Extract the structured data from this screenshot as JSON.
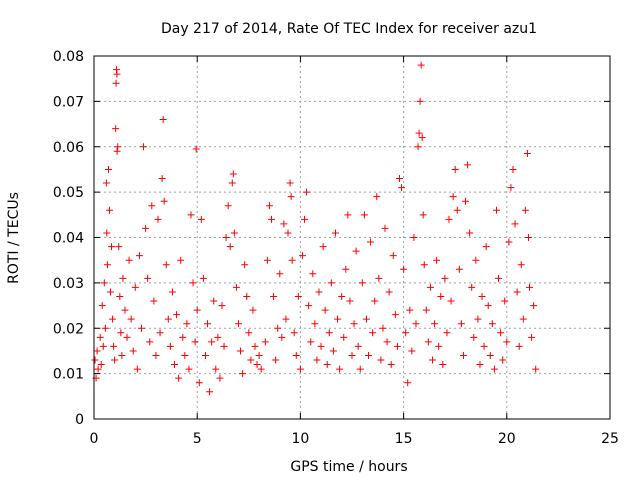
{
  "chart_data": {
    "type": "scatter",
    "title": "Day 217 of 2014, Rate Of TEC Index for receiver azu1",
    "xlabel": "GPS time / hours",
    "ylabel": "ROTI / TECUs",
    "xlim": [
      0,
      25
    ],
    "ylim": [
      0,
      0.08
    ],
    "x_ticks": [
      0,
      5,
      10,
      15,
      20,
      25
    ],
    "x_tick_labels": [
      "0",
      "5",
      "10",
      "15",
      "20",
      "25"
    ],
    "y_ticks": [
      0,
      0.01,
      0.02,
      0.03,
      0.04,
      0.05,
      0.06,
      0.07,
      0.08
    ],
    "y_tick_labels": [
      "0",
      "0.01",
      "0.02",
      "0.03",
      "0.04",
      "0.05",
      "0.06",
      "0.07",
      "0.08"
    ],
    "grid": true,
    "marker": "plus",
    "color": "#ff0000",
    "series": [
      {
        "points": [
          [
            0.05,
            0.013
          ],
          [
            0.1,
            0.009
          ],
          [
            0.15,
            0.015
          ],
          [
            0.2,
            0.011
          ],
          [
            0.3,
            0.018
          ],
          [
            0.35,
            0.012
          ],
          [
            0.4,
            0.025
          ],
          [
            0.45,
            0.016
          ],
          [
            0.5,
            0.03
          ],
          [
            0.55,
            0.02
          ],
          [
            0.6,
            0.052
          ],
          [
            0.62,
            0.041
          ],
          [
            0.65,
            0.034
          ],
          [
            0.7,
            0.055
          ],
          [
            0.75,
            0.046
          ],
          [
            0.8,
            0.028
          ],
          [
            0.85,
            0.038
          ],
          [
            0.9,
            0.022
          ],
          [
            0.95,
            0.016
          ],
          [
            1.0,
            0.013
          ],
          [
            1.05,
            0.064
          ],
          [
            1.07,
            0.074
          ],
          [
            1.09,
            0.077
          ],
          [
            1.11,
            0.076
          ],
          [
            1.12,
            0.059
          ],
          [
            1.15,
            0.06
          ],
          [
            1.2,
            0.038
          ],
          [
            1.25,
            0.027
          ],
          [
            1.3,
            0.019
          ],
          [
            1.35,
            0.014
          ],
          [
            1.4,
            0.031
          ],
          [
            1.5,
            0.024
          ],
          [
            1.6,
            0.018
          ],
          [
            1.7,
            0.035
          ],
          [
            1.8,
            0.022
          ],
          [
            1.9,
            0.015
          ],
          [
            2.0,
            0.029
          ],
          [
            2.1,
            0.011
          ],
          [
            2.2,
            0.036
          ],
          [
            2.3,
            0.02
          ],
          [
            2.4,
            0.06
          ],
          [
            2.5,
            0.042
          ],
          [
            2.6,
            0.031
          ],
          [
            2.7,
            0.017
          ],
          [
            2.8,
            0.047
          ],
          [
            2.9,
            0.026
          ],
          [
            3.0,
            0.014
          ],
          [
            3.1,
            0.044
          ],
          [
            3.2,
            0.019
          ],
          [
            3.3,
            0.053
          ],
          [
            3.35,
            0.066
          ],
          [
            3.4,
            0.048
          ],
          [
            3.5,
            0.034
          ],
          [
            3.6,
            0.022
          ],
          [
            3.7,
            0.016
          ],
          [
            3.8,
            0.028
          ],
          [
            3.9,
            0.012
          ],
          [
            4.0,
            0.023
          ],
          [
            4.1,
            0.009
          ],
          [
            4.2,
            0.035
          ],
          [
            4.3,
            0.018
          ],
          [
            4.4,
            0.014
          ],
          [
            4.5,
            0.021
          ],
          [
            4.6,
            0.011
          ],
          [
            4.7,
            0.045
          ],
          [
            4.8,
            0.03
          ],
          [
            4.9,
            0.017
          ],
          [
            4.95,
            0.0595
          ],
          [
            5.0,
            0.024
          ],
          [
            5.1,
            0.008
          ],
          [
            5.2,
            0.044
          ],
          [
            5.3,
            0.031
          ],
          [
            5.4,
            0.014
          ],
          [
            5.5,
            0.021
          ],
          [
            5.6,
            0.006
          ],
          [
            5.7,
            0.017
          ],
          [
            5.8,
            0.026
          ],
          [
            5.9,
            0.011
          ],
          [
            6.0,
            0.018
          ],
          [
            6.1,
            0.009
          ],
          [
            6.2,
            0.025
          ],
          [
            6.3,
            0.016
          ],
          [
            6.4,
            0.04
          ],
          [
            6.5,
            0.047
          ],
          [
            6.6,
            0.038
          ],
          [
            6.7,
            0.052
          ],
          [
            6.75,
            0.054
          ],
          [
            6.8,
            0.041
          ],
          [
            6.9,
            0.029
          ],
          [
            7.0,
            0.021
          ],
          [
            7.1,
            0.015
          ],
          [
            7.2,
            0.01
          ],
          [
            7.3,
            0.034
          ],
          [
            7.4,
            0.027
          ],
          [
            7.5,
            0.019
          ],
          [
            7.6,
            0.013
          ],
          [
            7.7,
            0.024
          ],
          [
            7.8,
            0.016
          ],
          [
            7.9,
            0.012
          ],
          [
            8.0,
            0.014
          ],
          [
            8.1,
            0.011
          ],
          [
            8.3,
            0.017
          ],
          [
            8.4,
            0.035
          ],
          [
            8.5,
            0.047
          ],
          [
            8.6,
            0.044
          ],
          [
            8.7,
            0.027
          ],
          [
            8.8,
            0.013
          ],
          [
            8.9,
            0.02
          ],
          [
            9.0,
            0.032
          ],
          [
            9.1,
            0.018
          ],
          [
            9.2,
            0.043
          ],
          [
            9.3,
            0.022
          ],
          [
            9.4,
            0.041
          ],
          [
            9.5,
            0.052
          ],
          [
            9.55,
            0.049
          ],
          [
            9.6,
            0.035
          ],
          [
            9.7,
            0.019
          ],
          [
            9.8,
            0.014
          ],
          [
            9.9,
            0.027
          ],
          [
            10.0,
            0.011
          ],
          [
            10.1,
            0.036
          ],
          [
            10.2,
            0.044
          ],
          [
            10.3,
            0.05
          ],
          [
            10.4,
            0.025
          ],
          [
            10.5,
            0.017
          ],
          [
            10.6,
            0.032
          ],
          [
            10.7,
            0.021
          ],
          [
            10.8,
            0.013
          ],
          [
            10.9,
            0.028
          ],
          [
            11.0,
            0.016
          ],
          [
            11.1,
            0.038
          ],
          [
            11.2,
            0.024
          ],
          [
            11.3,
            0.012
          ],
          [
            11.4,
            0.019
          ],
          [
            11.5,
            0.03
          ],
          [
            11.6,
            0.015
          ],
          [
            11.7,
            0.041
          ],
          [
            11.8,
            0.022
          ],
          [
            11.9,
            0.011
          ],
          [
            12.0,
            0.027
          ],
          [
            12.1,
            0.018
          ],
          [
            12.2,
            0.033
          ],
          [
            12.3,
            0.045
          ],
          [
            12.4,
            0.026
          ],
          [
            12.5,
            0.014
          ],
          [
            12.6,
            0.021
          ],
          [
            12.7,
            0.037
          ],
          [
            12.8,
            0.016
          ],
          [
            12.9,
            0.011
          ],
          [
            13.0,
            0.03
          ],
          [
            13.1,
            0.045
          ],
          [
            13.2,
            0.022
          ],
          [
            13.3,
            0.014
          ],
          [
            13.4,
            0.039
          ],
          [
            13.5,
            0.019
          ],
          [
            13.6,
            0.026
          ],
          [
            13.7,
            0.049
          ],
          [
            13.8,
            0.031
          ],
          [
            13.9,
            0.013
          ],
          [
            14.0,
            0.02
          ],
          [
            14.1,
            0.042
          ],
          [
            14.2,
            0.017
          ],
          [
            14.3,
            0.028
          ],
          [
            14.4,
            0.012
          ],
          [
            14.5,
            0.036
          ],
          [
            14.6,
            0.023
          ],
          [
            14.7,
            0.016
          ],
          [
            14.8,
            0.053
          ],
          [
            14.9,
            0.051
          ],
          [
            15.0,
            0.033
          ],
          [
            15.1,
            0.019
          ],
          [
            15.2,
            0.008
          ],
          [
            15.3,
            0.024
          ],
          [
            15.4,
            0.015
          ],
          [
            15.5,
            0.04
          ],
          [
            15.6,
            0.021
          ],
          [
            15.7,
            0.06
          ],
          [
            15.75,
            0.063
          ],
          [
            15.8,
            0.07
          ],
          [
            15.85,
            0.078
          ],
          [
            15.9,
            0.062
          ],
          [
            15.95,
            0.045
          ],
          [
            16.0,
            0.034
          ],
          [
            16.1,
            0.024
          ],
          [
            16.2,
            0.017
          ],
          [
            16.3,
            0.029
          ],
          [
            16.4,
            0.013
          ],
          [
            16.5,
            0.021
          ],
          [
            16.6,
            0.035
          ],
          [
            16.7,
            0.016
          ],
          [
            16.8,
            0.027
          ],
          [
            16.9,
            0.012
          ],
          [
            17.0,
            0.031
          ],
          [
            17.1,
            0.019
          ],
          [
            17.2,
            0.044
          ],
          [
            17.3,
            0.026
          ],
          [
            17.4,
            0.049
          ],
          [
            17.5,
            0.055
          ],
          [
            17.6,
            0.046
          ],
          [
            17.7,
            0.033
          ],
          [
            17.8,
            0.021
          ],
          [
            17.9,
            0.014
          ],
          [
            18.0,
            0.048
          ],
          [
            18.1,
            0.056
          ],
          [
            18.2,
            0.041
          ],
          [
            18.3,
            0.029
          ],
          [
            18.4,
            0.018
          ],
          [
            18.5,
            0.035
          ],
          [
            18.6,
            0.022
          ],
          [
            18.7,
            0.012
          ],
          [
            18.8,
            0.027
          ],
          [
            18.9,
            0.016
          ],
          [
            19.0,
            0.038
          ],
          [
            19.1,
            0.025
          ],
          [
            19.2,
            0.014
          ],
          [
            19.3,
            0.021
          ],
          [
            19.4,
            0.011
          ],
          [
            19.5,
            0.046
          ],
          [
            19.6,
            0.031
          ],
          [
            19.7,
            0.019
          ],
          [
            19.8,
            0.013
          ],
          [
            19.9,
            0.026
          ],
          [
            20.0,
            0.017
          ],
          [
            20.1,
            0.039
          ],
          [
            20.2,
            0.051
          ],
          [
            20.3,
            0.055
          ],
          [
            20.4,
            0.043
          ],
          [
            20.5,
            0.028
          ],
          [
            20.6,
            0.016
          ],
          [
            20.7,
            0.034
          ],
          [
            20.8,
            0.022
          ],
          [
            20.9,
            0.046
          ],
          [
            21.0,
            0.0585
          ],
          [
            21.05,
            0.04
          ],
          [
            21.1,
            0.029
          ],
          [
            21.2,
            0.018
          ],
          [
            21.3,
            0.025
          ],
          [
            21.4,
            0.011
          ]
        ]
      }
    ]
  }
}
